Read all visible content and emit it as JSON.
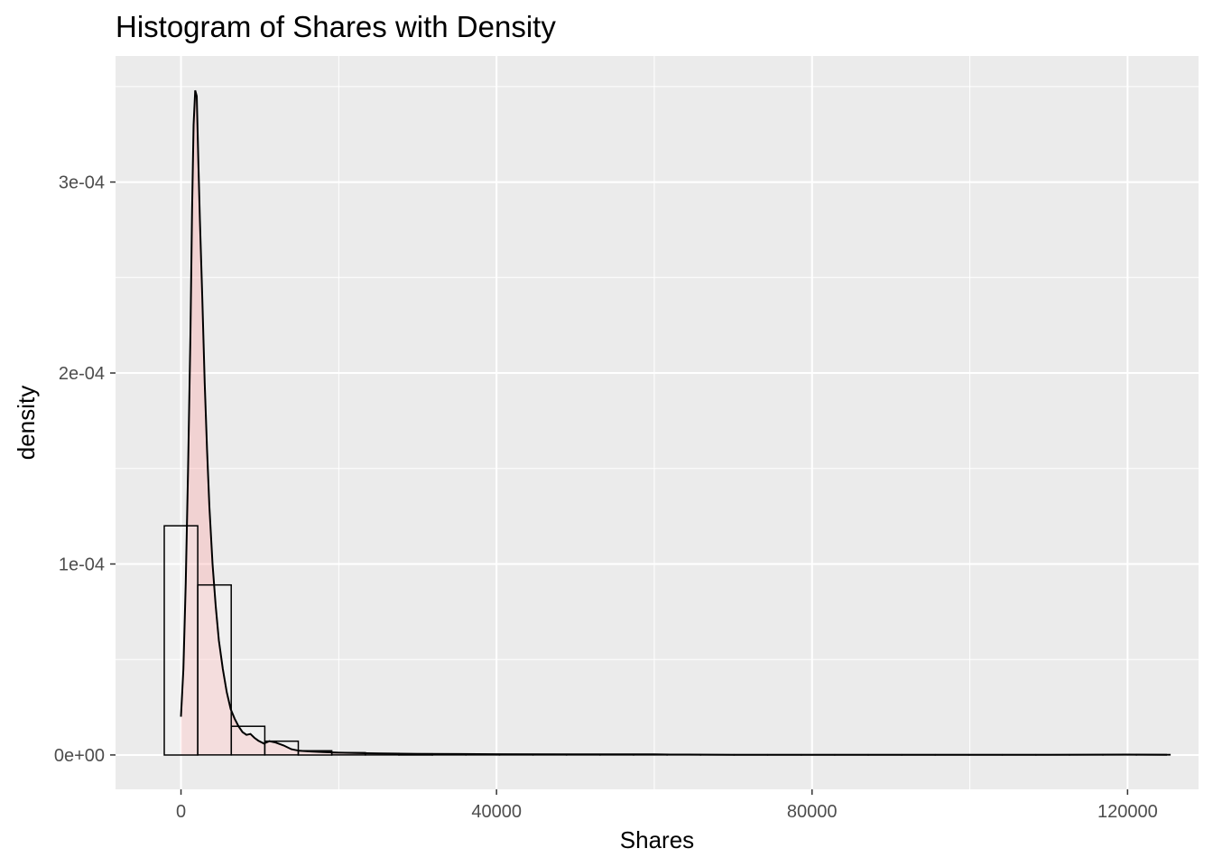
{
  "chart_data": {
    "type": "histogram",
    "title": "Histogram of Shares with Density",
    "xlabel": "Shares",
    "ylabel": "density",
    "xlim": [
      -8300,
      129000
    ],
    "ylim": [
      -1.8e-05,
      0.000366
    ],
    "x_ticks": [
      {
        "value": 0,
        "label": "0"
      },
      {
        "value": 40000,
        "label": "40000"
      },
      {
        "value": 80000,
        "label": "80000"
      },
      {
        "value": 120000,
        "label": "120000"
      }
    ],
    "y_ticks": [
      {
        "value": 0,
        "label": "0e+00"
      },
      {
        "value": 0.0001,
        "label": "1e-04"
      },
      {
        "value": 0.0002,
        "label": "2e-04"
      },
      {
        "value": 0.0003,
        "label": "3e-04"
      }
    ],
    "bin_width": 4250,
    "bins": [
      {
        "x0": -2125,
        "x1": 2125,
        "density": 0.00012
      },
      {
        "x0": 2125,
        "x1": 6375,
        "density": 8.9e-05
      },
      {
        "x0": 6375,
        "x1": 10625,
        "density": 1.5e-05
      },
      {
        "x0": 10625,
        "x1": 14875,
        "density": 7.2e-06
      },
      {
        "x0": 14875,
        "x1": 19125,
        "density": 2.2e-06
      },
      {
        "x0": 19125,
        "x1": 23375,
        "density": 1.2e-06
      },
      {
        "x0": 23375,
        "x1": 27625,
        "density": 8e-07
      },
      {
        "x0": 27625,
        "x1": 31875,
        "density": 6e-07
      },
      {
        "x0": 31875,
        "x1": 36125,
        "density": 4e-07
      },
      {
        "x0": 36125,
        "x1": 40375,
        "density": 3e-07
      },
      {
        "x0": 40375,
        "x1": 44625,
        "density": 3e-07
      },
      {
        "x0": 44625,
        "x1": 48875,
        "density": 2e-07
      },
      {
        "x0": 48875,
        "x1": 53125,
        "density": 2e-07
      },
      {
        "x0": 53125,
        "x1": 57375,
        "density": 2e-07
      },
      {
        "x0": 57375,
        "x1": 61625,
        "density": 1e-07
      },
      {
        "x0": 61625,
        "x1": 65875,
        "density": 1e-07
      },
      {
        "x0": 65875,
        "x1": 70125,
        "density": 1e-07
      },
      {
        "x0": 70125,
        "x1": 74375,
        "density": 1e-07
      },
      {
        "x0": 74375,
        "x1": 78625,
        "density": 1e-07
      },
      {
        "x0": 78625,
        "x1": 82875,
        "density": 1e-07
      },
      {
        "x0": 82875,
        "x1": 87125,
        "density": 1e-07
      },
      {
        "x0": 87125,
        "x1": 91375,
        "density": 1e-07
      },
      {
        "x0": 91375,
        "x1": 95625,
        "density": 1e-07
      },
      {
        "x0": 95625,
        "x1": 99875,
        "density": 1e-07
      },
      {
        "x0": 99875,
        "x1": 104125,
        "density": 1e-07
      },
      {
        "x0": 104125,
        "x1": 108375,
        "density": 1e-07
      },
      {
        "x0": 108375,
        "x1": 112625,
        "density": 1e-07
      },
      {
        "x0": 112625,
        "x1": 116875,
        "density": 1e-07
      },
      {
        "x0": 116875,
        "x1": 121125,
        "density": 1e-07
      },
      {
        "x0": 121125,
        "x1": 125375,
        "density": 2e-07
      }
    ],
    "density_curve": {
      "x": [
        0,
        300,
        600,
        900,
        1200,
        1400,
        1600,
        1800,
        2000,
        2200,
        2400,
        2700,
        3000,
        3300,
        3600,
        4000,
        4400,
        4800,
        5300,
        5800,
        6300,
        6800,
        7300,
        7800,
        8300,
        8800,
        9300,
        9800,
        10500,
        11200,
        12000,
        13000,
        14000,
        15000,
        16500,
        18000,
        20000,
        22000,
        25000,
        30000,
        35000,
        40000,
        50000,
        60000,
        62000,
        70000,
        80000,
        90000,
        100000,
        110000,
        120000,
        125000
      ],
      "y": [
        2e-05,
        4.5e-05,
        9e-05,
        0.00015,
        0.00022,
        0.000285,
        0.00033,
        0.000348,
        0.000345,
        0.00031,
        0.00028,
        0.00024,
        0.000195,
        0.00016,
        0.00013,
        0.0001,
        7.8e-05,
        6e-05,
        4.5e-05,
        3.3e-05,
        2.4e-05,
        1.9e-05,
        1.5e-05,
        1.2e-05,
        1.05e-05,
        1.1e-05,
        9e-06,
        7.5e-06,
        6e-06,
        7.2e-06,
        6.5e-06,
        5e-06,
        3e-06,
        2.2e-06,
        1.8e-06,
        1.5e-06,
        1.2e-06,
        1e-06,
        8e-07,
        6e-07,
        5e-07,
        4e-07,
        3e-07,
        3e-07,
        2e-07,
        1e-07,
        1e-07,
        1e-07,
        1e-07,
        1e-07,
        2e-07,
        1e-07
      ]
    },
    "bar_fill": "#ffffff",
    "bar_outline": "#000000",
    "density_fill": "#ff9999",
    "density_fill_alpha": 0.3,
    "density_line": "#000000",
    "panel_background": "#ebebeb",
    "grid_color": "#ffffff",
    "grid": true,
    "legend": "none"
  }
}
